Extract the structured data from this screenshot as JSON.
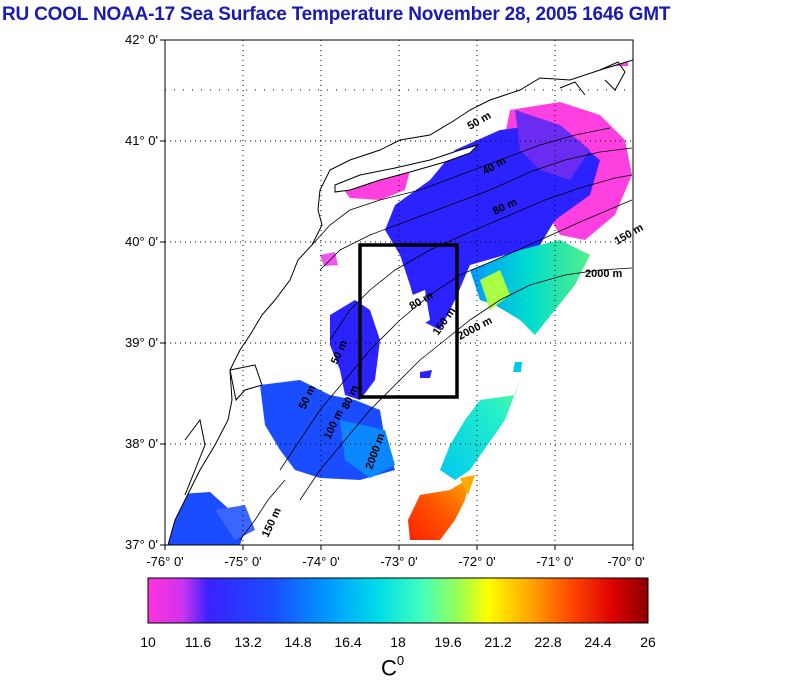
{
  "title": "RU COOL  NOAA-17 Sea Surface Temperature November 28, 2005 1646 GMT",
  "map": {
    "lat_labels": [
      "42° 0'",
      "41° 0'",
      "40° 0'",
      "39° 0'",
      "38° 0'",
      "37° 0'"
    ],
    "lon_labels": [
      "-76° 0'",
      "-75° 0'",
      "-74° 0'",
      "-73° 0'",
      "-72° 0'",
      "-71° 0'",
      "-70° 0'"
    ],
    "lat_range": [
      37,
      42
    ],
    "lon_range": [
      -76,
      -70
    ],
    "study_box": {
      "lon_min": -73.5,
      "lon_max": -72.25,
      "lat_min": 38.5,
      "lat_max": 40.0
    },
    "isobath_labels": [
      "2000 m",
      "2000 m",
      "2000 m",
      "150 m",
      "150 m",
      "150 m",
      "80 m",
      "80 m",
      "80 m",
      "50 m",
      "50 m",
      "40 m",
      "100 m",
      "50 m"
    ],
    "land_color": "#ffffff",
    "coast_color": "#000000"
  },
  "colorbar": {
    "ticks": [
      "10",
      "11.6",
      "13.2",
      "14.8",
      "16.4",
      "18",
      "19.6",
      "21.2",
      "22.8",
      "24.4",
      "26"
    ],
    "min": 10,
    "max": 26,
    "unit_label": "C",
    "unit_sup": "0",
    "colors": [
      "#ff33dd",
      "#9a33ee",
      "#2222ff",
      "#1a4dff",
      "#0099ff",
      "#00ddee",
      "#33ffcc",
      "#88ff66",
      "#ddff22",
      "#ffcc00",
      "#ff7700",
      "#ff2200",
      "#e00000",
      "#9a0000"
    ]
  }
}
